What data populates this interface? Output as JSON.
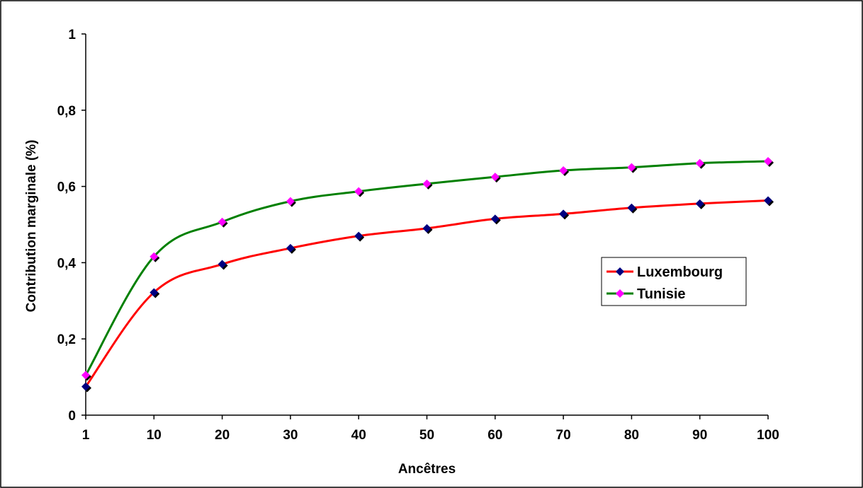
{
  "chart_data": {
    "type": "line",
    "title": "",
    "xlabel": "Ancêtres",
    "ylabel": "Contribution marginale (%)",
    "x": [
      1,
      10,
      20,
      30,
      40,
      50,
      60,
      70,
      80,
      90,
      100
    ],
    "x_tick_labels": [
      "1",
      "10",
      "20",
      "30",
      "40",
      "50",
      "60",
      "70",
      "80",
      "90",
      "100"
    ],
    "y_tick_labels": [
      "0",
      "0,2",
      "0,4",
      "0,6",
      "0,8",
      "1"
    ],
    "y_ticks": [
      0,
      0.2,
      0.4,
      0.6,
      0.8,
      1
    ],
    "ylim": [
      0,
      1
    ],
    "xlim": [
      1,
      100
    ],
    "grid": false,
    "legend_position": "right",
    "series": [
      {
        "name": "Luxembourg",
        "line_color": "#ff0000",
        "marker_color": "#000080",
        "values": [
          0.075,
          0.322,
          0.396,
          0.438,
          0.47,
          0.49,
          0.515,
          0.528,
          0.544,
          0.555,
          0.563
        ]
      },
      {
        "name": "Tunisie",
        "line_color": "#008000",
        "marker_color": "#ff00ff",
        "values": [
          0.105,
          0.416,
          0.507,
          0.561,
          0.587,
          0.607,
          0.625,
          0.642,
          0.65,
          0.661,
          0.666
        ]
      }
    ]
  }
}
